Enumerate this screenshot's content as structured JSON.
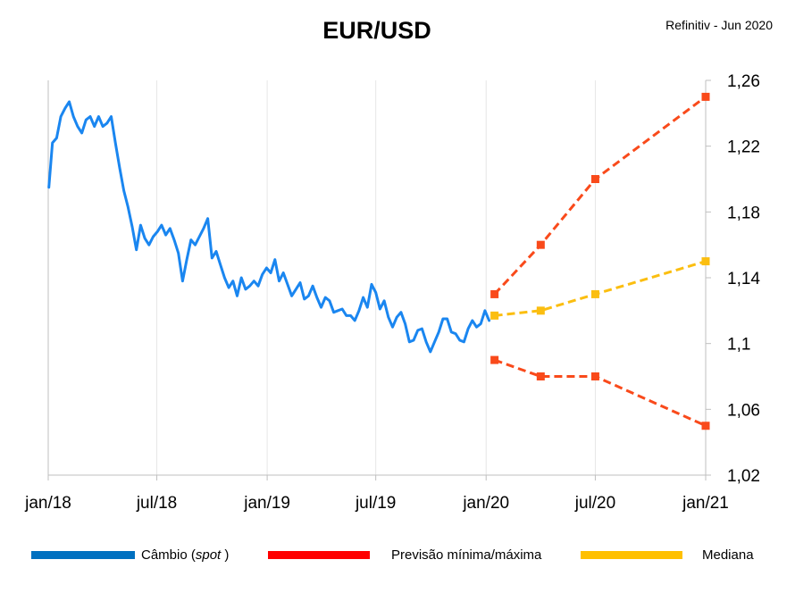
{
  "chart_data": {
    "type": "line",
    "title": "EUR/USD",
    "source_note": "Refinitiv - Jun 2020",
    "xlabel": "",
    "ylabel": "",
    "ylim": [
      1.02,
      1.26
    ],
    "y_ticks": [
      1.02,
      1.06,
      1.1,
      1.14,
      1.18,
      1.22,
      1.26
    ],
    "y_tick_labels": [
      "1,02",
      "1,06",
      "1,1",
      "1,14",
      "1,18",
      "1,22",
      "1,26"
    ],
    "x_ticks": [
      "2018-01-01",
      "2018-07-01",
      "2019-01-01",
      "2019-07-01",
      "2020-01-01",
      "2020-07-01",
      "2021-01-01"
    ],
    "x_tick_labels": [
      "jan/18",
      "jul/18",
      "jan/19",
      "jul/19",
      "jan/20",
      "jul/20",
      "jan/21"
    ],
    "grid": "vertical",
    "legend_position": "bottom",
    "series": [
      {
        "name": "Câmbio (spot)",
        "name_main": "Câmbio (",
        "name_italic": "spot",
        "name_end": " )",
        "color": "#1a86f0",
        "legend_color": "#0070c0",
        "style": "solid",
        "points": [
          [
            "2018-01-02",
            1.195
          ],
          [
            "2018-01-08",
            1.222
          ],
          [
            "2018-01-15",
            1.225
          ],
          [
            "2018-01-22",
            1.238
          ],
          [
            "2018-01-29",
            1.243
          ],
          [
            "2018-02-05",
            1.247
          ],
          [
            "2018-02-12",
            1.238
          ],
          [
            "2018-02-19",
            1.232
          ],
          [
            "2018-02-26",
            1.228
          ],
          [
            "2018-03-05",
            1.236
          ],
          [
            "2018-03-12",
            1.238
          ],
          [
            "2018-03-19",
            1.232
          ],
          [
            "2018-03-26",
            1.238
          ],
          [
            "2018-04-02",
            1.232
          ],
          [
            "2018-04-09",
            1.234
          ],
          [
            "2018-04-16",
            1.238
          ],
          [
            "2018-04-23",
            1.222
          ],
          [
            "2018-04-30",
            1.207
          ],
          [
            "2018-05-07",
            1.193
          ],
          [
            "2018-05-14",
            1.183
          ],
          [
            "2018-05-21",
            1.171
          ],
          [
            "2018-05-28",
            1.157
          ],
          [
            "2018-06-04",
            1.172
          ],
          [
            "2018-06-11",
            1.164
          ],
          [
            "2018-06-18",
            1.16
          ],
          [
            "2018-06-25",
            1.165
          ],
          [
            "2018-07-02",
            1.168
          ],
          [
            "2018-07-09",
            1.172
          ],
          [
            "2018-07-16",
            1.166
          ],
          [
            "2018-07-23",
            1.17
          ],
          [
            "2018-07-30",
            1.163
          ],
          [
            "2018-08-06",
            1.155
          ],
          [
            "2018-08-13",
            1.138
          ],
          [
            "2018-08-20",
            1.151
          ],
          [
            "2018-08-27",
            1.163
          ],
          [
            "2018-09-03",
            1.16
          ],
          [
            "2018-09-10",
            1.165
          ],
          [
            "2018-09-17",
            1.17
          ],
          [
            "2018-09-24",
            1.176
          ],
          [
            "2018-10-01",
            1.152
          ],
          [
            "2018-10-08",
            1.156
          ],
          [
            "2018-10-15",
            1.148
          ],
          [
            "2018-10-22",
            1.14
          ],
          [
            "2018-10-29",
            1.134
          ],
          [
            "2018-11-05",
            1.138
          ],
          [
            "2018-11-12",
            1.129
          ],
          [
            "2018-11-19",
            1.14
          ],
          [
            "2018-11-26",
            1.133
          ],
          [
            "2018-12-03",
            1.135
          ],
          [
            "2018-12-10",
            1.138
          ],
          [
            "2018-12-17",
            1.135
          ],
          [
            "2018-12-24",
            1.142
          ],
          [
            "2018-12-31",
            1.146
          ],
          [
            "2019-01-07",
            1.143
          ],
          [
            "2019-01-14",
            1.151
          ],
          [
            "2019-01-21",
            1.138
          ],
          [
            "2019-01-28",
            1.143
          ],
          [
            "2019-02-04",
            1.136
          ],
          [
            "2019-02-11",
            1.129
          ],
          [
            "2019-02-18",
            1.133
          ],
          [
            "2019-02-25",
            1.137
          ],
          [
            "2019-03-04",
            1.127
          ],
          [
            "2019-03-11",
            1.129
          ],
          [
            "2019-03-18",
            1.135
          ],
          [
            "2019-03-25",
            1.128
          ],
          [
            "2019-04-01",
            1.122
          ],
          [
            "2019-04-08",
            1.128
          ],
          [
            "2019-04-15",
            1.126
          ],
          [
            "2019-04-22",
            1.119
          ],
          [
            "2019-04-29",
            1.12
          ],
          [
            "2019-05-06",
            1.121
          ],
          [
            "2019-05-13",
            1.117
          ],
          [
            "2019-05-20",
            1.117
          ],
          [
            "2019-05-27",
            1.114
          ],
          [
            "2019-06-03",
            1.12
          ],
          [
            "2019-06-10",
            1.128
          ],
          [
            "2019-06-17",
            1.122
          ],
          [
            "2019-06-24",
            1.136
          ],
          [
            "2019-07-01",
            1.131
          ],
          [
            "2019-07-08",
            1.121
          ],
          [
            "2019-07-15",
            1.126
          ],
          [
            "2019-07-22",
            1.116
          ],
          [
            "2019-07-29",
            1.11
          ],
          [
            "2019-08-05",
            1.116
          ],
          [
            "2019-08-12",
            1.119
          ],
          [
            "2019-08-19",
            1.112
          ],
          [
            "2019-08-26",
            1.101
          ],
          [
            "2019-09-02",
            1.102
          ],
          [
            "2019-09-09",
            1.108
          ],
          [
            "2019-09-16",
            1.109
          ],
          [
            "2019-09-23",
            1.101
          ],
          [
            "2019-09-30",
            1.095
          ],
          [
            "2019-10-07",
            1.101
          ],
          [
            "2019-10-14",
            1.107
          ],
          [
            "2019-10-21",
            1.115
          ],
          [
            "2019-10-28",
            1.115
          ],
          [
            "2019-11-04",
            1.107
          ],
          [
            "2019-11-11",
            1.106
          ],
          [
            "2019-11-18",
            1.102
          ],
          [
            "2019-11-25",
            1.101
          ],
          [
            "2019-12-02",
            1.109
          ],
          [
            "2019-12-09",
            1.114
          ],
          [
            "2019-12-16",
            1.11
          ],
          [
            "2019-12-23",
            1.112
          ],
          [
            "2019-12-30",
            1.12
          ],
          [
            "2020-01-06",
            1.114
          ]
        ]
      },
      {
        "name": "Previsão mínima/máxima",
        "color": "#f94a1b",
        "legend_color": "#ff0000",
        "style": "dashed",
        "lines": [
          [
            [
              "2020-01-15",
              1.13
            ],
            [
              "2020-04-01",
              1.16
            ],
            [
              "2020-07-01",
              1.2
            ],
            [
              "2021-01-01",
              1.25
            ]
          ],
          [
            [
              "2020-01-15",
              1.09
            ],
            [
              "2020-04-01",
              1.08
            ],
            [
              "2020-07-01",
              1.08
            ],
            [
              "2021-01-01",
              1.05
            ]
          ]
        ]
      },
      {
        "name": "Mediana",
        "color": "#fbbe10",
        "legend_color": "#ffc000",
        "style": "dashed",
        "lines": [
          [
            [
              "2020-01-15",
              1.117
            ],
            [
              "2020-04-01",
              1.12
            ],
            [
              "2020-07-01",
              1.13
            ],
            [
              "2021-01-01",
              1.15
            ]
          ]
        ]
      }
    ]
  }
}
